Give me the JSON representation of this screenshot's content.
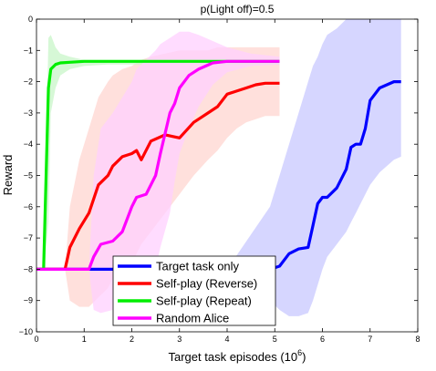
{
  "chart_data": {
    "type": "line",
    "title": "p(Light off)=0.5",
    "xlabel": "Target task episodes (10",
    "xlabel_superscript": "6",
    "xlabel_suffix": ")",
    "ylabel": "Reward",
    "xlim": [
      0,
      8
    ],
    "ylim": [
      -10,
      0
    ],
    "xticks": [
      0,
      1,
      2,
      3,
      4,
      5,
      6,
      7,
      8
    ],
    "yticks": [
      0,
      -1,
      -2,
      -3,
      -4,
      -5,
      -6,
      -7,
      -8,
      -9,
      -10
    ],
    "grid": false,
    "legend": {
      "placement": "bottom-center",
      "inside": true
    },
    "series": [
      {
        "name": "Target task only",
        "color": "#0000ff",
        "band_color": "#c8c8ff",
        "x": [
          0,
          4.0,
          4.9,
          5.1,
          5.3,
          5.5,
          5.7,
          5.8,
          5.9,
          6.0,
          6.1,
          6.3,
          6.5,
          6.6,
          6.7,
          6.8,
          6.9,
          7.0,
          7.2,
          7.5,
          7.65
        ],
        "y": [
          -8.0,
          -8.0,
          -8.0,
          -7.9,
          -7.5,
          -7.35,
          -7.3,
          -6.6,
          -5.9,
          -5.7,
          -5.7,
          -5.4,
          -4.8,
          -4.1,
          -4.0,
          -4.0,
          -3.5,
          -2.6,
          -2.2,
          -2.0,
          -2.0
        ],
        "band_upper": [
          -8.0,
          -8.0,
          -6.0,
          -5.0,
          -4.0,
          -3.0,
          -2.0,
          -1.5,
          -1.2,
          -0.8,
          -0.5,
          -0.3,
          0,
          0,
          0,
          0,
          0,
          0,
          0,
          0,
          0
        ],
        "band_lower": [
          -8.0,
          -8.0,
          -9.0,
          -9.3,
          -9.5,
          -9.5,
          -9.4,
          -9.0,
          -8.5,
          -8.0,
          -7.6,
          -7.2,
          -6.8,
          -6.5,
          -6.2,
          -5.9,
          -5.6,
          -5.3,
          -4.9,
          -4.5,
          -4.4
        ]
      },
      {
        "name": "Self-play (Reverse)",
        "color": "#ff0000",
        "band_color": "#ffd6d0",
        "x": [
          0,
          0.6,
          0.7,
          0.9,
          1.1,
          1.3,
          1.5,
          1.6,
          1.8,
          2.0,
          2.1,
          2.2,
          2.4,
          2.7,
          3.0,
          3.3,
          3.6,
          3.8,
          4.0,
          4.2,
          4.4,
          4.6,
          4.8,
          5.1
        ],
        "y": [
          -8.0,
          -8.0,
          -7.3,
          -6.7,
          -6.2,
          -5.3,
          -5.0,
          -4.7,
          -4.4,
          -4.3,
          -4.2,
          -4.5,
          -3.9,
          -3.7,
          -3.8,
          -3.3,
          -3.0,
          -2.8,
          -2.4,
          -2.3,
          -2.2,
          -2.1,
          -2.05,
          -2.05
        ],
        "band_upper": [
          -8.0,
          -8.0,
          -6.0,
          -4.5,
          -3.5,
          -2.5,
          -2.0,
          -1.8,
          -1.6,
          -1.5,
          -1.4,
          -1.3,
          -1.2,
          -1.1,
          -1.0,
          -1.0,
          -1.0,
          -0.9,
          -0.9,
          -0.9,
          -0.9,
          -0.9,
          -0.9,
          -0.9
        ],
        "band_lower": [
          -8.0,
          -8.0,
          -9.0,
          -9.2,
          -9.2,
          -8.9,
          -8.6,
          -8.3,
          -8.0,
          -7.8,
          -7.5,
          -7.2,
          -6.8,
          -6.2,
          -5.6,
          -5.0,
          -4.5,
          -4.2,
          -3.8,
          -3.5,
          -3.3,
          -3.2,
          -3.1,
          -3.1
        ]
      },
      {
        "name": "Self-play (Repeat)",
        "color": "#00ee00",
        "band_color": "#c8f5c8",
        "x": [
          0,
          0.15,
          0.25,
          0.3,
          0.4,
          0.5,
          0.7,
          1.0,
          1.5,
          2.0,
          3.0,
          4.0,
          5.1
        ],
        "y": [
          -8.0,
          -8.0,
          -2.2,
          -1.6,
          -1.45,
          -1.4,
          -1.38,
          -1.35,
          -1.35,
          -1.35,
          -1.35,
          -1.35,
          -1.35
        ],
        "band_upper": [
          -8.0,
          -8.0,
          -0.6,
          -0.5,
          -0.9,
          -1.1,
          -1.2,
          -1.3,
          -1.3,
          -1.3,
          -1.3,
          -1.3,
          -1.3
        ],
        "band_lower": [
          -8.0,
          -8.0,
          -6.5,
          -3.0,
          -2.2,
          -1.8,
          -1.6,
          -1.5,
          -1.45,
          -1.45,
          -1.45,
          -1.45,
          -1.45
        ]
      },
      {
        "name": "Random Alice",
        "color": "#ff00ff",
        "band_color": "#ffd0ff",
        "x": [
          0,
          1.1,
          1.2,
          1.35,
          1.6,
          1.8,
          2.0,
          2.1,
          2.3,
          2.5,
          2.6,
          2.8,
          2.9,
          3.0,
          3.2,
          3.4,
          3.7,
          4.0,
          4.5,
          5.1
        ],
        "y": [
          -8.0,
          -8.0,
          -7.6,
          -7.2,
          -7.1,
          -6.8,
          -6.0,
          -5.7,
          -5.6,
          -5.0,
          -4.3,
          -3.0,
          -2.7,
          -2.2,
          -1.8,
          -1.6,
          -1.4,
          -1.35,
          -1.35,
          -1.35
        ],
        "band_upper": [
          -8.0,
          -8.0,
          -5.0,
          -3.5,
          -3.0,
          -2.5,
          -2.0,
          -1.6,
          -1.3,
          -1.0,
          -0.8,
          -0.6,
          -0.5,
          -0.4,
          -0.4,
          -0.5,
          -0.7,
          -0.9,
          -1.1,
          -1.2
        ],
        "band_lower": [
          -8.0,
          -8.0,
          -9.3,
          -9.4,
          -9.3,
          -9.2,
          -9.0,
          -8.8,
          -8.5,
          -8.0,
          -7.3,
          -6.2,
          -5.2,
          -4.3,
          -3.5,
          -2.8,
          -2.1,
          -1.7,
          -1.5,
          -1.45
        ]
      }
    ]
  }
}
